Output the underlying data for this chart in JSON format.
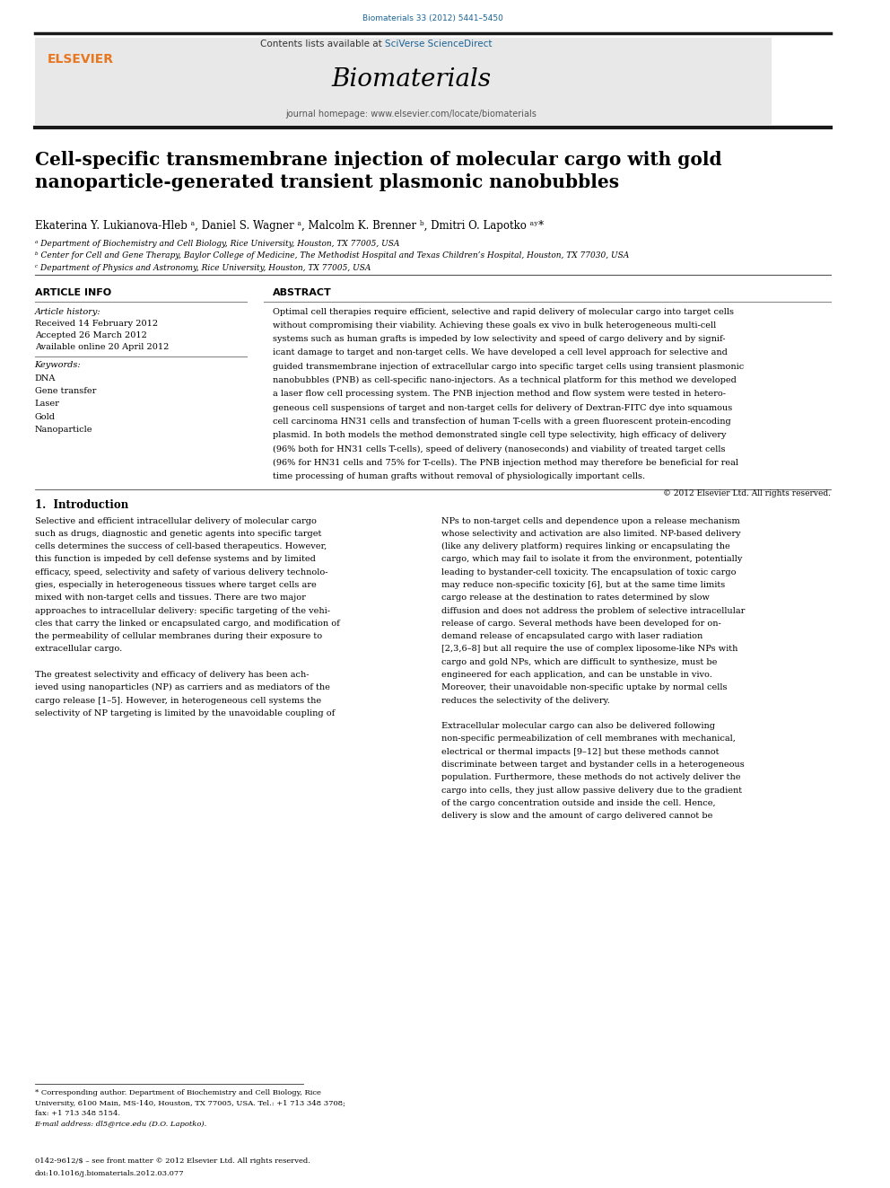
{
  "page_width": 9.92,
  "page_height": 13.23,
  "background_color": "#ffffff",
  "journal_ref": "Biomaterials 33 (2012) 5441–5450",
  "journal_ref_color": "#1a6496",
  "header_bg": "#e8e8e8",
  "journal_name": "Biomaterials",
  "journal_homepage": "journal homepage: www.elsevier.com/locate/biomaterials",
  "article_title": "Cell-specific transmembrane injection of molecular cargo with gold\nnanoparticle-generated transient plasmonic nanobubbles",
  "authors": "Ekaterina Y. Lukianova-Hleb ᵃ, Daniel S. Wagner ᵃ, Malcolm K. Brenner ᵇ, Dmitri O. Lapotko ᵃʸ*",
  "affil_a": "ᵃ Department of Biochemistry and Cell Biology, Rice University, Houston, TX 77005, USA",
  "affil_b": "ᵇ Center for Cell and Gene Therapy, Baylor College of Medicine, The Methodist Hospital and Texas Children’s Hospital, Houston, TX 77030, USA",
  "affil_c": "ᶜ Department of Physics and Astronomy, Rice University, Houston, TX 77005, USA",
  "article_info_title": "ARTICLE INFO",
  "abstract_title": "ABSTRACT",
  "article_history_label": "Article history:",
  "received": "Received 14 February 2012",
  "accepted": "Accepted 26 March 2012",
  "available": "Available online 20 April 2012",
  "keywords_label": "Keywords:",
  "keywords": [
    "DNA",
    "Gene transfer",
    "Laser",
    "Gold",
    "Nanoparticle"
  ],
  "copyright": "© 2012 Elsevier Ltd. All rights reserved.",
  "section1_title": "1.  Introduction",
  "footer_issn": "0142-9612/$ – see front matter © 2012 Elsevier Ltd. All rights reserved.",
  "footer_doi": "doi:10.1016/j.biomaterials.2012.03.077",
  "elsevier_color": "#e87722",
  "thick_bar_color": "#1a1a1a",
  "sciverse_color": "#1a6496",
  "abstract_lines": [
    "Optimal cell therapies require efficient, selective and rapid delivery of molecular cargo into target cells",
    "without compromising their viability. Achieving these goals ex vivo in bulk heterogeneous multi-cell",
    "systems such as human grafts is impeded by low selectivity and speed of cargo delivery and by signif-",
    "icant damage to target and non-target cells. We have developed a cell level approach for selective and",
    "guided transmembrane injection of extracellular cargo into specific target cells using transient plasmonic",
    "nanobubbles (PNB) as cell-specific nano-injectors. As a technical platform for this method we developed",
    "a laser flow cell processing system. The PNB injection method and flow system were tested in hetero-",
    "geneous cell suspensions of target and non-target cells for delivery of Dextran-FITC dye into squamous",
    "cell carcinoma HN31 cells and transfection of human T-cells with a green fluorescent protein-encoding",
    "plasmid. In both models the method demonstrated single cell type selectivity, high efficacy of delivery",
    "(96% both for HN31 cells T-cells), speed of delivery (nanoseconds) and viability of treated target cells",
    "(96% for HN31 cells and 75% for T-cells). The PNB injection method may therefore be beneficial for real",
    "time processing of human grafts without removal of physiologically important cells."
  ],
  "intro_col1_lines": [
    "Selective and efficient intracellular delivery of molecular cargo",
    "such as drugs, diagnostic and genetic agents into specific target",
    "cells determines the success of cell-based therapeutics. However,",
    "this function is impeded by cell defense systems and by limited",
    "efficacy, speed, selectivity and safety of various delivery technolo-",
    "gies, especially in heterogeneous tissues where target cells are",
    "mixed with non-target cells and tissues. There are two major",
    "approaches to intracellular delivery: specific targeting of the vehi-",
    "cles that carry the linked or encapsulated cargo, and modification of",
    "the permeability of cellular membranes during their exposure to",
    "extracellular cargo.",
    "",
    "The greatest selectivity and efficacy of delivery has been ach-",
    "ieved using nanoparticles (NP) as carriers and as mediators of the",
    "cargo release [1–5]. However, in heterogeneous cell systems the",
    "selectivity of NP targeting is limited by the unavoidable coupling of"
  ],
  "intro_col2_lines": [
    "NPs to non-target cells and dependence upon a release mechanism",
    "whose selectivity and activation are also limited. NP-based delivery",
    "(like any delivery platform) requires linking or encapsulating the",
    "cargo, which may fail to isolate it from the environment, potentially",
    "leading to bystander-cell toxicity. The encapsulation of toxic cargo",
    "may reduce non-specific toxicity [6], but at the same time limits",
    "cargo release at the destination to rates determined by slow",
    "diffusion and does not address the problem of selective intracellular",
    "release of cargo. Several methods have been developed for on-",
    "demand release of encapsulated cargo with laser radiation",
    "[2,3,6–8] but all require the use of complex liposome-like NPs with",
    "cargo and gold NPs, which are difficult to synthesize, must be",
    "engineered for each application, and can be unstable in vivo.",
    "Moreover, their unavoidable non-specific uptake by normal cells",
    "reduces the selectivity of the delivery.",
    "",
    "Extracellular molecular cargo can also be delivered following",
    "non-specific permeabilization of cell membranes with mechanical,",
    "electrical or thermal impacts [9–12] but these methods cannot",
    "discriminate between target and bystander cells in a heterogeneous",
    "population. Furthermore, these methods do not actively deliver the",
    "cargo into cells, they just allow passive delivery due to the gradient",
    "of the cargo concentration outside and inside the cell. Hence,",
    "delivery is slow and the amount of cargo delivered cannot be"
  ],
  "footnote_lines": [
    "* Corresponding author. Department of Biochemistry and Cell Biology, Rice",
    "University, 6100 Main, MS-140, Houston, TX 77005, USA. Tel.: +1 713 348 3708;",
    "fax: +1 713 348 5154.",
    "E-mail address: dl5@rice.edu (D.O. Lapotko)."
  ]
}
